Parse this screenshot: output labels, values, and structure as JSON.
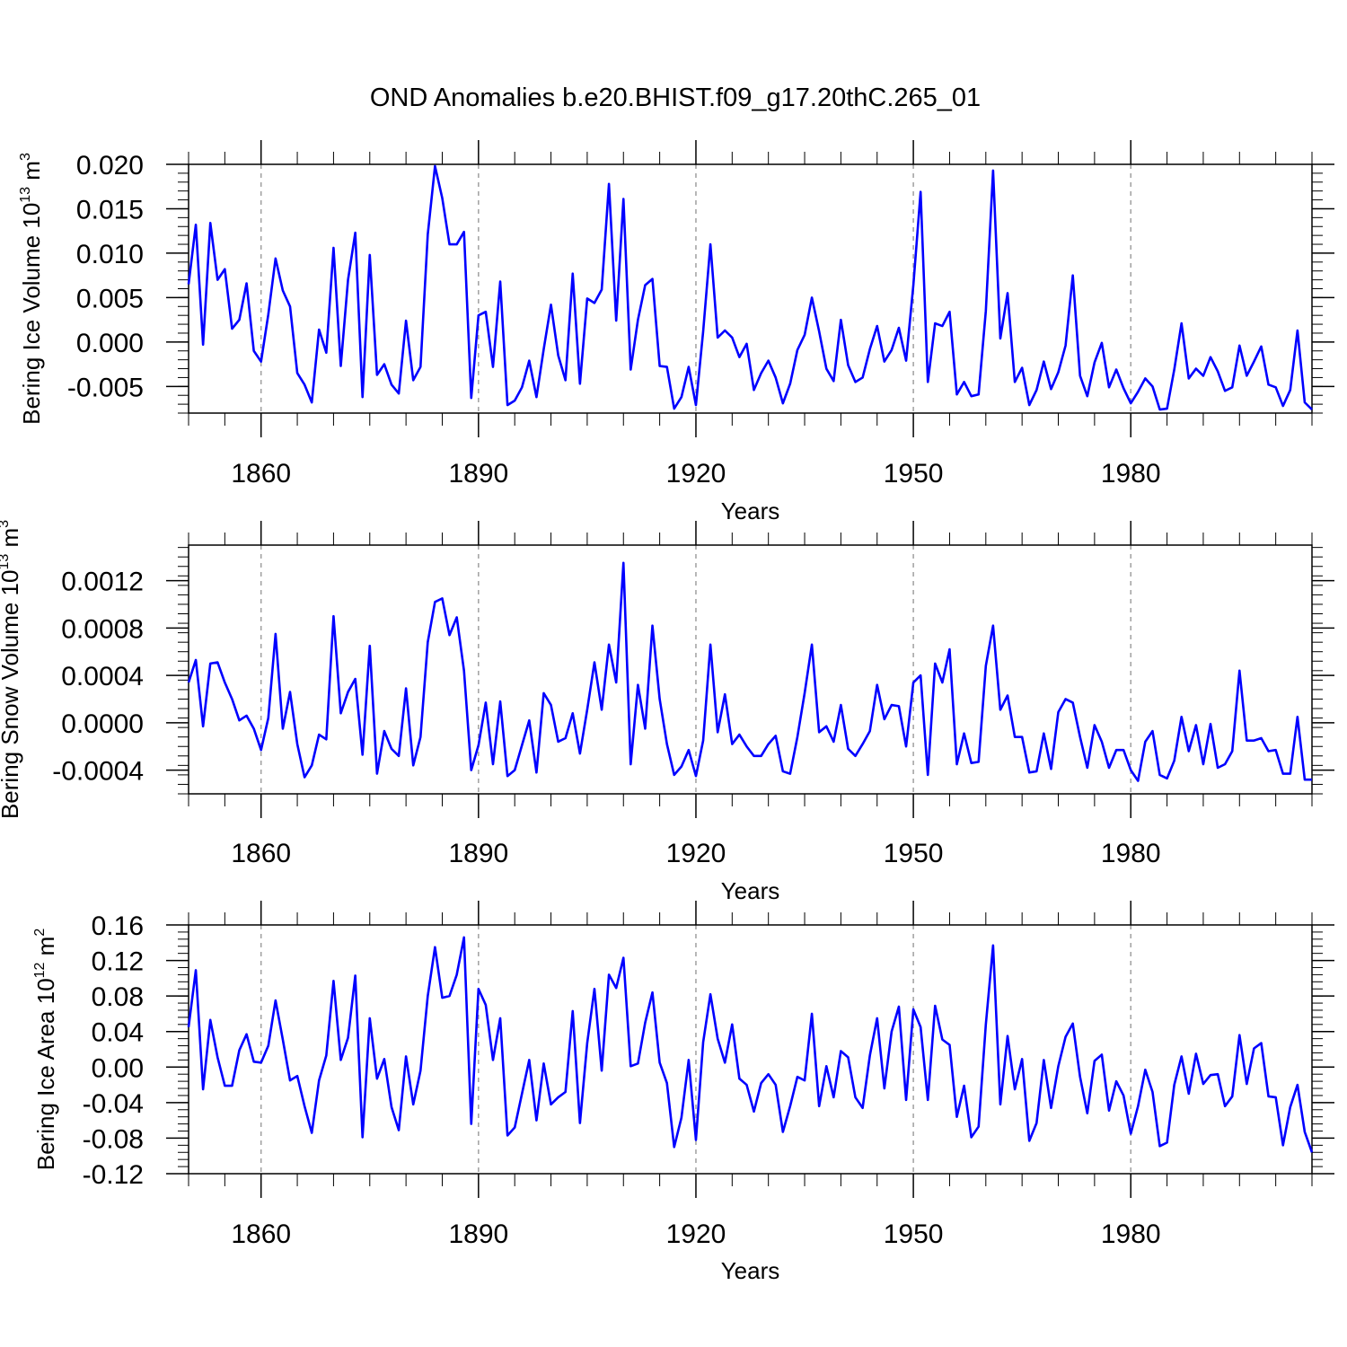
{
  "title": "OND Anomalies b.e20.BHIST.f09_g17.20thC.265_01",
  "colors": {
    "series": "#0000ff",
    "axis": "#000000",
    "grid": "#a0a0a0"
  },
  "chart_data": [
    {
      "type": "line",
      "name": "ice-volume",
      "xlabel": "Years",
      "ylabel": {
        "text": "Bering Ice Volume 10",
        "exp": "13",
        "unit": " m",
        "unit_exp": "3"
      },
      "xlim": [
        1850,
        2005
      ],
      "ylim": [
        -0.008,
        0.02
      ],
      "xticks": [
        1860,
        1890,
        1920,
        1950,
        1980
      ],
      "xtick_labels": [
        "1860",
        "1890",
        "1920",
        "1950",
        "1980"
      ],
      "yticks": [
        0.02,
        0.015,
        0.01,
        0.005,
        0.0,
        -0.005
      ],
      "ytick_labels": [
        "0.020",
        "0.015",
        "0.010",
        "0.005",
        "0.000",
        "-0.005"
      ],
      "x_start": 1850,
      "values": [
        0.0065,
        0.0132,
        -0.0003,
        0.0134,
        0.007,
        0.0082,
        0.0015,
        0.0025,
        0.0066,
        -0.001,
        -0.0022,
        0.0031,
        0.0094,
        0.0058,
        0.004,
        -0.0035,
        -0.0048,
        -0.0068,
        0.0014,
        -0.0012,
        0.0106,
        -0.0027,
        0.007,
        0.0123,
        -0.0062,
        0.0098,
        -0.0037,
        -0.0025,
        -0.0048,
        -0.0058,
        0.0024,
        -0.0043,
        -0.0028,
        0.0121,
        0.0198,
        0.0162,
        0.011,
        0.011,
        0.0124,
        -0.0063,
        0.003,
        0.0034,
        -0.0028,
        0.0068,
        -0.0071,
        -0.0066,
        -0.0051,
        -0.0021,
        -0.0062,
        -0.0008,
        0.0042,
        -0.0015,
        -0.0043,
        0.0077,
        -0.0047,
        0.0049,
        0.0044,
        0.0059,
        0.0178,
        0.0024,
        0.0161,
        -0.0031,
        0.0025,
        0.0064,
        0.0071,
        -0.0027,
        -0.0028,
        -0.0075,
        -0.0062,
        -0.0028,
        -0.0071,
        0.0012,
        0.011,
        0.0005,
        0.0013,
        0.0005,
        -0.0017,
        -0.0002,
        -0.0054,
        -0.0035,
        -0.0021,
        -0.004,
        -0.0069,
        -0.0047,
        -0.0009,
        0.0008,
        0.005,
        0.0012,
        -0.003,
        -0.0044,
        0.0025,
        -0.0026,
        -0.0045,
        -0.004,
        -0.0008,
        0.0018,
        -0.0022,
        -0.0009,
        0.0016,
        -0.0021,
        0.0064,
        0.0169,
        -0.0045,
        0.0021,
        0.0018,
        0.0034,
        -0.0059,
        -0.0045,
        -0.0061,
        -0.0059,
        0.0035,
        0.0193,
        0.0004,
        0.0055,
        -0.0045,
        -0.0029,
        -0.0071,
        -0.0054,
        -0.0022,
        -0.0053,
        -0.0034,
        -0.0004,
        0.0075,
        -0.0038,
        -0.0061,
        -0.0023,
        -0.0001,
        -0.0051,
        -0.0031,
        -0.0052,
        -0.0069,
        -0.0056,
        -0.0041,
        -0.005,
        -0.0076,
        -0.0075,
        -0.0031,
        0.0021,
        -0.0041,
        -0.003,
        -0.0038,
        -0.0017,
        -0.0033,
        -0.0055,
        -0.0051,
        -0.0004,
        -0.0038,
        -0.0022,
        -0.0005,
        -0.0048,
        -0.0051,
        -0.0072,
        -0.0054,
        0.0013,
        -0.0068,
        -0.0076
      ]
    },
    {
      "type": "line",
      "name": "snow-volume",
      "xlabel": "Years",
      "ylabel": {
        "text": "Bering Snow Volume 10",
        "exp": "13",
        "unit": " m",
        "unit_exp": "3"
      },
      "xlim": [
        1850,
        2005
      ],
      "ylim": [
        -0.0006,
        0.0015
      ],
      "xticks": [
        1860,
        1890,
        1920,
        1950,
        1980
      ],
      "xtick_labels": [
        "1860",
        "1890",
        "1920",
        "1950",
        "1980"
      ],
      "yticks": [
        0.0012,
        0.0008,
        0.0004,
        0.0,
        -0.0004
      ],
      "ytick_labels": [
        "0.0012",
        "0.0008",
        "0.0004",
        "0.0000",
        "-0.0004"
      ],
      "x_start": 1850,
      "values": [
        0.00034,
        0.00053,
        -3e-05,
        0.0005,
        0.00051,
        0.00034,
        0.0002,
        2e-05,
        6e-05,
        -5e-05,
        -0.00023,
        4e-05,
        0.00075,
        -5e-05,
        0.00026,
        -0.00018,
        -0.00046,
        -0.00036,
        -0.0001,
        -0.00014,
        0.0009,
        8e-05,
        0.00026,
        0.00037,
        -0.00027,
        0.00065,
        -0.00043,
        -7e-05,
        -0.00022,
        -0.00028,
        0.00029,
        -0.00036,
        -0.00012,
        0.00068,
        0.00102,
        0.00105,
        0.00074,
        0.00089,
        0.00044,
        -0.0004,
        -0.00019,
        0.00017,
        -0.00035,
        0.00018,
        -0.00045,
        -0.0004,
        -0.00019,
        2e-05,
        -0.00042,
        0.00025,
        0.00015,
        -0.00016,
        -0.00013,
        8e-05,
        -0.00026,
        0.00011,
        0.00051,
        0.00011,
        0.00066,
        0.00034,
        0.00135,
        -0.00035,
        0.00032,
        -5e-05,
        0.00082,
        0.0002,
        -0.00018,
        -0.00044,
        -0.00037,
        -0.00023,
        -0.00045,
        -0.00015,
        0.00066,
        -8e-05,
        0.00024,
        -0.00018,
        -0.0001,
        -0.0002,
        -0.00028,
        -0.00028,
        -0.00018,
        -0.00011,
        -0.00041,
        -0.00043,
        -0.00012,
        0.00025,
        0.00066,
        -8e-05,
        -3e-05,
        -0.00016,
        0.00015,
        -0.00022,
        -0.00028,
        -0.00018,
        -7e-05,
        0.00032,
        3e-05,
        0.00015,
        0.00014,
        -0.0002,
        0.00034,
        0.0004,
        -0.00044,
        0.0005,
        0.00034,
        0.00062,
        -0.00035,
        -9e-05,
        -0.00034,
        -0.00033,
        0.00048,
        0.00082,
        0.00011,
        0.00023,
        -0.00012,
        -0.00012,
        -0.00042,
        -0.00041,
        -9e-05,
        -0.00039,
        9e-05,
        0.0002,
        0.00017,
        -0.00012,
        -0.00038,
        -2e-05,
        -0.00016,
        -0.00038,
        -0.00023,
        -0.00023,
        -0.0004,
        -0.00049,
        -0.00016,
        -7e-05,
        -0.00044,
        -0.00047,
        -0.00032,
        5e-05,
        -0.00024,
        -2e-05,
        -0.00035,
        -1e-05,
        -0.00038,
        -0.00035,
        -0.00024,
        0.00044,
        -0.00015,
        -0.00015,
        -0.00013,
        -0.00024,
        -0.00023,
        -0.00043,
        -0.00043,
        5e-05,
        -0.00048,
        -0.00048
      ]
    },
    {
      "type": "line",
      "name": "ice-area",
      "xlabel": "Years",
      "ylabel": {
        "text": "Bering Ice Area 10",
        "exp": "12",
        "unit": " m",
        "unit_exp": "2"
      },
      "xlim": [
        1850,
        2005
      ],
      "ylim": [
        -0.12,
        0.16
      ],
      "xticks": [
        1860,
        1890,
        1920,
        1950,
        1980
      ],
      "xtick_labels": [
        "1860",
        "1890",
        "1920",
        "1950",
        "1980"
      ],
      "yticks": [
        0.16,
        0.12,
        0.08,
        0.04,
        0.0,
        -0.04,
        -0.08,
        -0.12
      ],
      "ytick_labels": [
        "0.16",
        "0.12",
        "0.08",
        "0.04",
        "0.00",
        "-0.04",
        "-0.08",
        "-0.12"
      ],
      "x_start": 1850,
      "values": [
        0.045,
        0.109,
        -0.025,
        0.053,
        0.011,
        -0.021,
        -0.021,
        0.019,
        0.037,
        0.006,
        0.005,
        0.024,
        0.075,
        0.031,
        -0.015,
        -0.01,
        -0.044,
        -0.074,
        -0.015,
        0.013,
        0.097,
        0.008,
        0.033,
        0.103,
        -0.079,
        0.055,
        -0.013,
        0.009,
        -0.045,
        -0.071,
        0.012,
        -0.042,
        -0.004,
        0.08,
        0.135,
        0.078,
        0.08,
        0.104,
        0.146,
        -0.064,
        0.088,
        0.07,
        0.008,
        0.055,
        -0.077,
        -0.068,
        -0.03,
        0.008,
        -0.06,
        0.004,
        -0.042,
        -0.034,
        -0.028,
        0.063,
        -0.063,
        0.027,
        0.088,
        -0.004,
        0.104,
        0.089,
        0.123,
        0.001,
        0.004,
        0.05,
        0.084,
        0.005,
        -0.018,
        -0.09,
        -0.057,
        0.008,
        -0.082,
        0.028,
        0.082,
        0.032,
        0.005,
        0.048,
        -0.013,
        -0.02,
        -0.05,
        -0.018,
        -0.008,
        -0.02,
        -0.073,
        -0.044,
        -0.011,
        -0.015,
        0.06,
        -0.044,
        0.001,
        -0.034,
        0.018,
        0.011,
        -0.034,
        -0.046,
        0.013,
        0.055,
        -0.024,
        0.04,
        0.068,
        -0.037,
        0.065,
        0.045,
        -0.037,
        0.069,
        0.031,
        0.025,
        -0.056,
        -0.021,
        -0.079,
        -0.067,
        0.048,
        0.137,
        -0.042,
        0.035,
        -0.025,
        0.009,
        -0.083,
        -0.063,
        0.008,
        -0.046,
        0.001,
        0.034,
        0.049,
        -0.011,
        -0.052,
        0.007,
        0.014,
        -0.049,
        -0.016,
        -0.032,
        -0.075,
        -0.044,
        -0.003,
        -0.028,
        -0.089,
        -0.085,
        -0.02,
        0.012,
        -0.03,
        0.015,
        -0.019,
        -0.009,
        -0.008,
        -0.044,
        -0.033,
        0.036,
        -0.019,
        0.021,
        0.027,
        -0.033,
        -0.034,
        -0.088,
        -0.045,
        -0.02,
        -0.073,
        -0.096
      ]
    }
  ]
}
